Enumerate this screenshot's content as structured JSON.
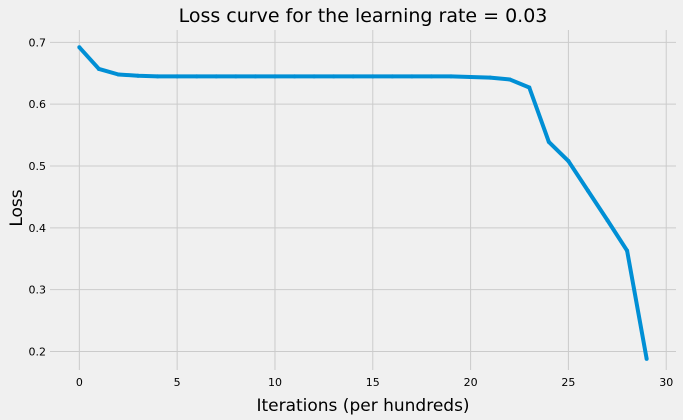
{
  "chart_data": {
    "type": "line",
    "title": "Loss curve for the learning rate = 0.03",
    "xlabel": "Iterations (per hundreds)",
    "ylabel": "Loss",
    "xlim": [
      -1.5,
      30.5
    ],
    "ylim": [
      0.17,
      0.72
    ],
    "xticks": [
      0,
      5,
      10,
      15,
      20,
      25,
      30
    ],
    "yticks": [
      0.2,
      0.3,
      0.4,
      0.5,
      0.6,
      0.7
    ],
    "grid": true,
    "series": [
      {
        "color": "#008fd5",
        "x": [
          0,
          1,
          2,
          3,
          4,
          5,
          6,
          7,
          8,
          9,
          10,
          11,
          12,
          13,
          14,
          15,
          16,
          17,
          18,
          19,
          20,
          21,
          22,
          23,
          24,
          25,
          26,
          27,
          28,
          29
        ],
        "y": [
          0.692,
          0.657,
          0.648,
          0.646,
          0.645,
          0.645,
          0.645,
          0.645,
          0.645,
          0.645,
          0.645,
          0.645,
          0.645,
          0.645,
          0.645,
          0.645,
          0.645,
          0.645,
          0.645,
          0.645,
          0.644,
          0.643,
          0.64,
          0.627,
          0.539,
          0.508,
          0.46,
          0.412,
          0.363,
          0.188
        ]
      }
    ]
  },
  "colors": {
    "background": "#f0f0f0",
    "grid": "#cbcbcb",
    "line": "#008fd5"
  }
}
